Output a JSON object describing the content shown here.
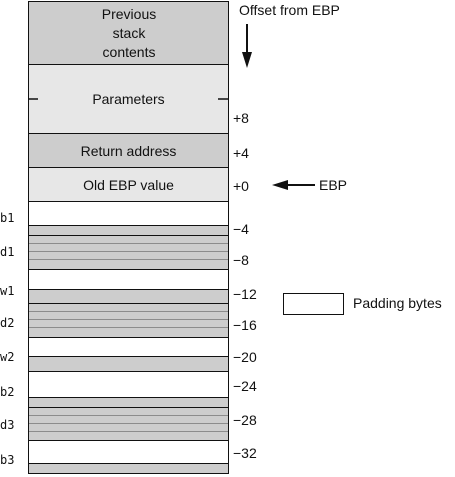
{
  "header": {
    "offset_label": "Offset from EBP"
  },
  "stack": {
    "previous": "Previous stack contents",
    "parameters": "Parameters",
    "return_address": "Return address",
    "old_ebp": "Old EBP value"
  },
  "offsets": [
    "+8",
    "+4",
    "+0",
    "−4",
    "−8",
    "−12",
    "−16",
    "−20",
    "−24",
    "−28",
    "−32"
  ],
  "ebp_pointer": "EBP",
  "variables": [
    "b1",
    "d1",
    "w1",
    "d2",
    "w2",
    "b2",
    "d3",
    "b3"
  ],
  "legend": {
    "padding_label": "Padding bytes"
  },
  "colors": {
    "gray_dark": "#cdcdcd",
    "gray_light": "#e7e7e7",
    "white": "#ffffff",
    "line": "#111111"
  }
}
